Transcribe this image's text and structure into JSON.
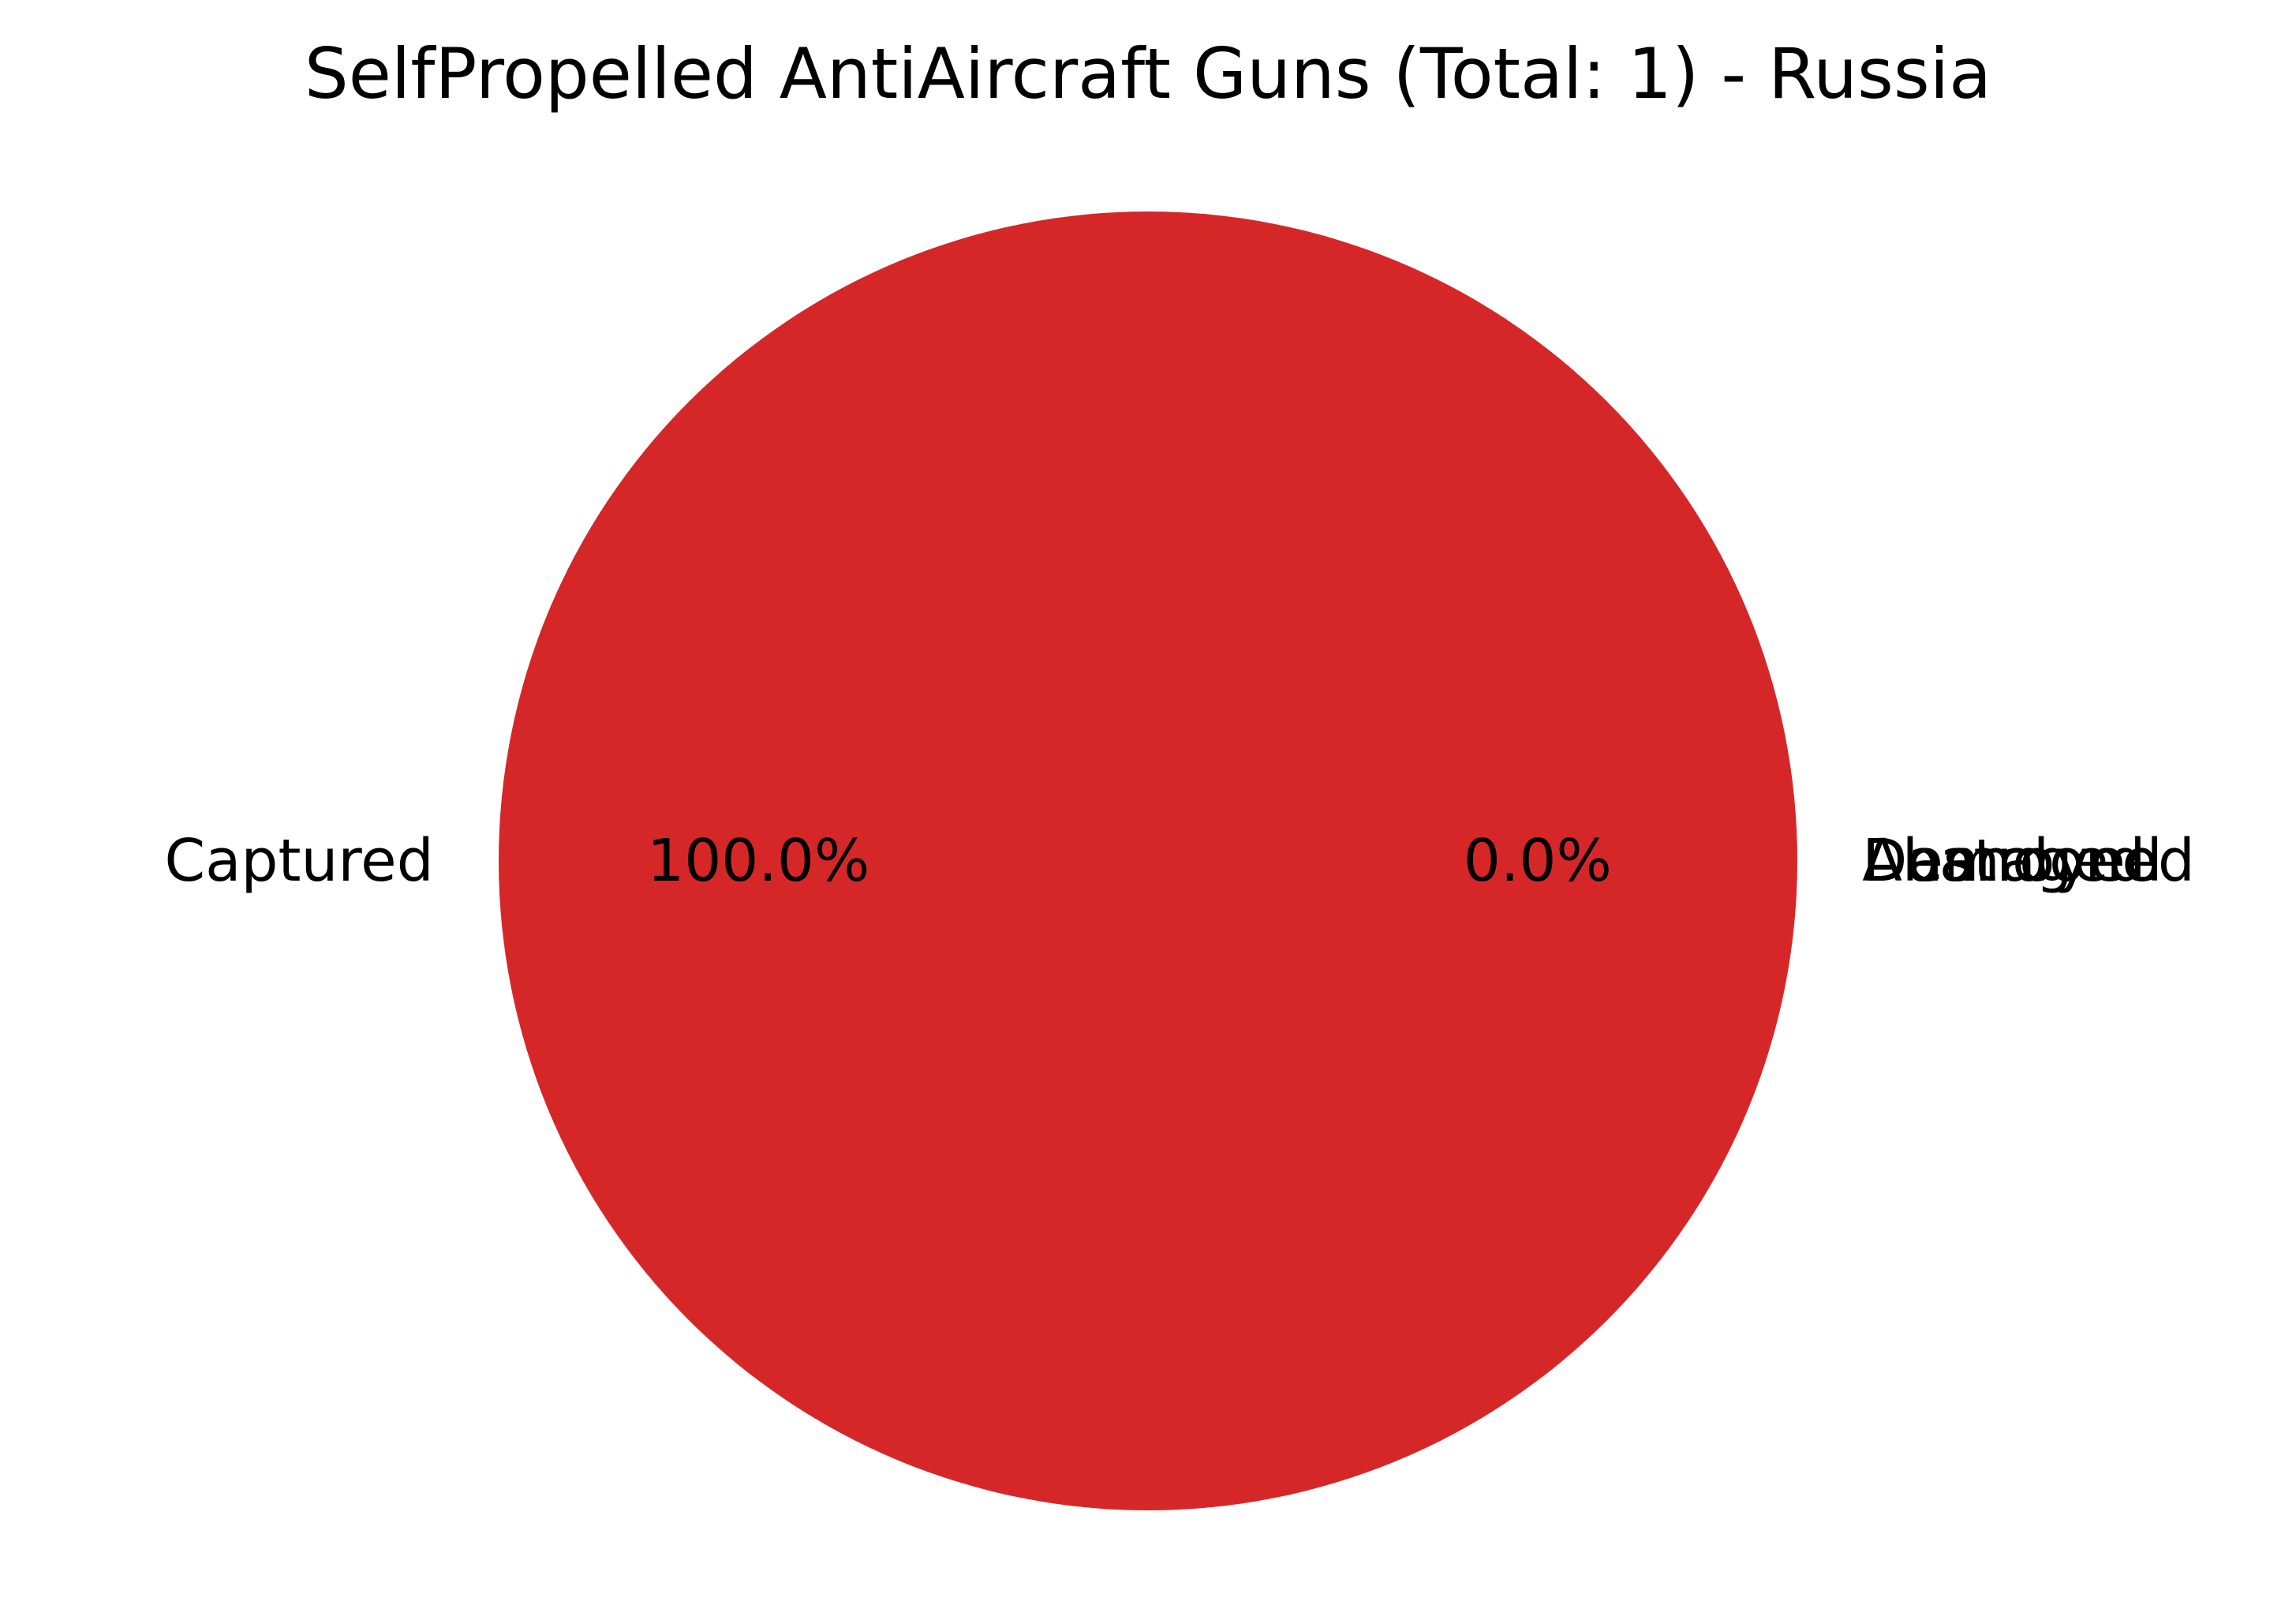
{
  "chart_data": {
    "type": "pie",
    "title": "SelfPropelled AntiAircraft Guns (Total: 1) - Russia",
    "slices": [
      {
        "label": "Captured",
        "value": 1,
        "percent_label": "100.0%",
        "color": "#d62728"
      },
      {
        "label": "Destroyed",
        "value": 0,
        "percent_label": "0.0%",
        "color": "#1f77b4"
      },
      {
        "label": "Abandoned",
        "value": 0,
        "percent_label": "",
        "color": "#ff7f0e"
      },
      {
        "label": "Damaged",
        "value": 0,
        "percent_label": "",
        "color": "#2ca02c"
      }
    ],
    "legend": "none"
  }
}
